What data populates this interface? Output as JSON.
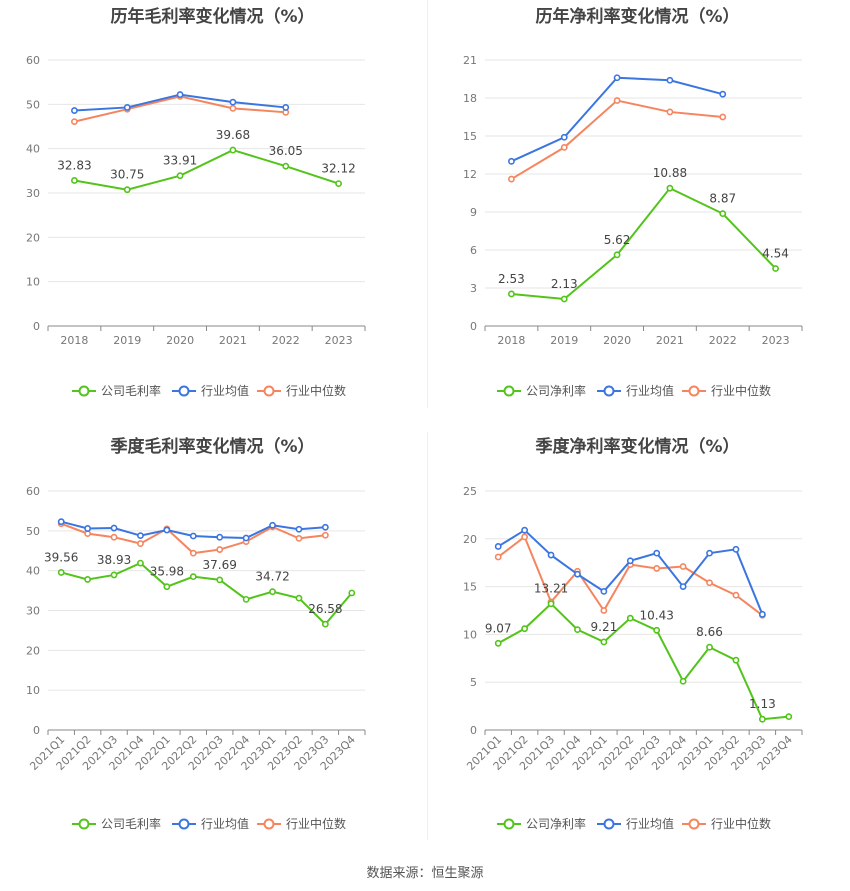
{
  "source_text": "数据来源：恒生聚源",
  "colors": {
    "company": "#52c41a",
    "industry_avg": "#3b75e0",
    "industry_median": "#f5855f",
    "grid": "#e6e6e6",
    "axis": "#888888",
    "tick": "#777777"
  },
  "chart_data": [
    {
      "type": "line",
      "title": "历年毛利率变化情况（%）",
      "categories": [
        "2018",
        "2019",
        "2020",
        "2021",
        "2022",
        "2023"
      ],
      "ylim": [
        0,
        60
      ],
      "yticks": [
        0,
        10,
        20,
        30,
        40,
        50,
        60
      ],
      "legend": [
        "公司毛利率",
        "行业均值",
        "行业中位数"
      ],
      "series": [
        {
          "name": "公司毛利率",
          "values": [
            32.83,
            30.75,
            33.91,
            39.68,
            36.05,
            32.12
          ],
          "labels": [
            "32.83",
            "30.75",
            "33.91",
            "39.68",
            "36.05",
            "32.12"
          ]
        },
        {
          "name": "行业均值",
          "values": [
            48.6,
            49.3,
            52.2,
            50.5,
            49.3,
            null
          ]
        },
        {
          "name": "行业中位数",
          "values": [
            46.1,
            48.9,
            51.8,
            49.1,
            48.2,
            null
          ]
        }
      ]
    },
    {
      "type": "line",
      "title": "历年净利率变化情况（%）",
      "categories": [
        "2018",
        "2019",
        "2020",
        "2021",
        "2022",
        "2023"
      ],
      "ylim": [
        0,
        21
      ],
      "yticks": [
        0,
        3,
        6,
        9,
        12,
        15,
        18,
        21
      ],
      "legend": [
        "公司净利率",
        "行业均值",
        "行业中位数"
      ],
      "series": [
        {
          "name": "公司净利率",
          "values": [
            2.53,
            2.13,
            5.62,
            10.88,
            8.87,
            4.54
          ],
          "labels": [
            "2.53",
            "2.13",
            "5.62",
            "10.88",
            "8.87",
            "4.54"
          ]
        },
        {
          "name": "行业均值",
          "values": [
            13.0,
            14.9,
            19.6,
            19.4,
            18.3,
            null
          ]
        },
        {
          "name": "行业中位数",
          "values": [
            11.6,
            14.1,
            17.8,
            16.9,
            16.5,
            null
          ]
        }
      ]
    },
    {
      "type": "line",
      "title": "季度毛利率变化情况（%）",
      "categories": [
        "2021Q1",
        "2021Q2",
        "2021Q3",
        "2021Q4",
        "2022Q1",
        "2022Q2",
        "2022Q3",
        "2022Q4",
        "2023Q1",
        "2023Q2",
        "2023Q3",
        "2023Q4"
      ],
      "ylim": [
        0,
        60
      ],
      "yticks": [
        0,
        10,
        20,
        30,
        40,
        50,
        60
      ],
      "legend": [
        "公司毛利率",
        "行业均值",
        "行业中位数"
      ],
      "series": [
        {
          "name": "公司毛利率",
          "values": [
            39.56,
            37.8,
            38.93,
            41.9,
            35.98,
            38.5,
            37.69,
            32.8,
            34.72,
            33.1,
            26.58,
            34.4
          ],
          "labels": [
            "39.56",
            "",
            "38.93",
            "",
            "35.98",
            "",
            "37.69",
            "",
            "34.72",
            "",
            "26.58",
            ""
          ]
        },
        {
          "name": "行业均值",
          "values": [
            52.3,
            50.6,
            50.7,
            48.8,
            50.2,
            48.7,
            48.4,
            48.2,
            51.4,
            50.4,
            50.9,
            null
          ]
        },
        {
          "name": "行业中位数",
          "values": [
            51.8,
            49.3,
            48.4,
            46.8,
            50.5,
            44.4,
            45.3,
            47.3,
            51.0,
            48.1,
            48.9,
            null
          ]
        }
      ]
    },
    {
      "type": "line",
      "title": "季度净利率变化情况（%）",
      "categories": [
        "2021Q1",
        "2021Q2",
        "2021Q3",
        "2021Q4",
        "2022Q1",
        "2022Q2",
        "2022Q3",
        "2022Q4",
        "2023Q1",
        "2023Q2",
        "2023Q3",
        "2023Q4"
      ],
      "ylim": [
        0,
        25
      ],
      "yticks": [
        0,
        5,
        10,
        15,
        20,
        25
      ],
      "legend": [
        "公司净利率",
        "行业均值",
        "行业中位数"
      ],
      "series": [
        {
          "name": "公司净利率",
          "values": [
            9.07,
            10.6,
            13.21,
            10.5,
            9.21,
            11.7,
            10.43,
            5.1,
            8.66,
            7.3,
            1.13,
            1.4
          ],
          "labels": [
            "9.07",
            "",
            "13.21",
            "",
            "9.21",
            "",
            "10.43",
            "",
            "8.66",
            "",
            "1.13",
            ""
          ]
        },
        {
          "name": "行业均值",
          "values": [
            19.2,
            20.9,
            18.3,
            16.3,
            14.5,
            17.7,
            18.5,
            15.0,
            18.5,
            18.9,
            12.1,
            null
          ]
        },
        {
          "name": "行业中位数",
          "values": [
            18.1,
            20.2,
            13.4,
            16.6,
            12.5,
            17.3,
            16.9,
            17.1,
            15.4,
            14.1,
            12.0,
            null
          ]
        }
      ]
    }
  ]
}
